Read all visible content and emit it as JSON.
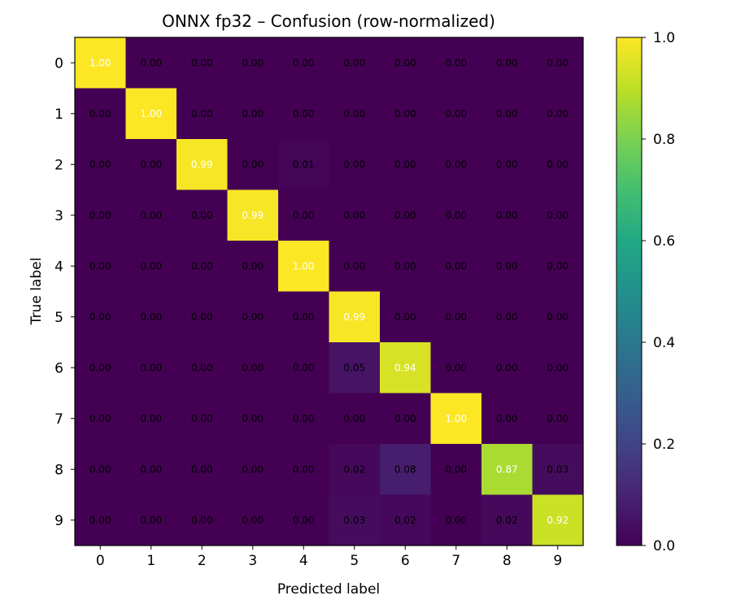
{
  "chart_data": {
    "type": "heatmap",
    "title": "ONNX fp32 – Confusion (row-normalized)",
    "xlabel": "Predicted label",
    "ylabel": "True label",
    "x_categories": [
      "0",
      "1",
      "2",
      "3",
      "4",
      "5",
      "6",
      "7",
      "8",
      "9"
    ],
    "y_categories": [
      "0",
      "1",
      "2",
      "3",
      "4",
      "5",
      "6",
      "7",
      "8",
      "9"
    ],
    "values": [
      [
        1.0,
        0.0,
        0.0,
        0.0,
        0.0,
        0.0,
        0.0,
        0.0,
        0.0,
        0.0
      ],
      [
        0.0,
        1.0,
        0.0,
        0.0,
        0.0,
        0.0,
        0.0,
        0.0,
        0.0,
        0.0
      ],
      [
        0.0,
        0.0,
        0.99,
        0.0,
        0.01,
        0.0,
        0.0,
        0.0,
        0.0,
        0.0
      ],
      [
        0.0,
        0.0,
        0.0,
        0.99,
        0.0,
        0.0,
        0.0,
        0.0,
        0.0,
        0.0
      ],
      [
        0.0,
        0.0,
        0.0,
        0.0,
        1.0,
        0.0,
        0.0,
        0.0,
        0.0,
        0.0
      ],
      [
        0.0,
        0.0,
        0.0,
        0.0,
        0.0,
        0.99,
        0.0,
        0.0,
        0.0,
        0.0
      ],
      [
        0.0,
        0.0,
        0.0,
        0.0,
        0.0,
        0.05,
        0.94,
        0.0,
        0.0,
        0.0
      ],
      [
        0.0,
        0.0,
        0.0,
        0.0,
        0.0,
        0.0,
        0.0,
        1.0,
        0.0,
        0.0
      ],
      [
        0.0,
        0.0,
        0.0,
        0.0,
        0.0,
        0.02,
        0.08,
        0.0,
        0.87,
        0.03
      ],
      [
        0.0,
        0.0,
        0.0,
        0.0,
        0.0,
        0.03,
        0.02,
        0.0,
        0.02,
        0.92
      ]
    ],
    "colormap": "viridis",
    "colorbar": {
      "range": [
        0.0,
        1.0
      ],
      "ticks": [
        "0.0",
        "0.2",
        "0.4",
        "0.6",
        "0.8",
        "1.0"
      ]
    },
    "annotation_colors": {
      "high": "#ffffff",
      "low": "#000000"
    }
  }
}
